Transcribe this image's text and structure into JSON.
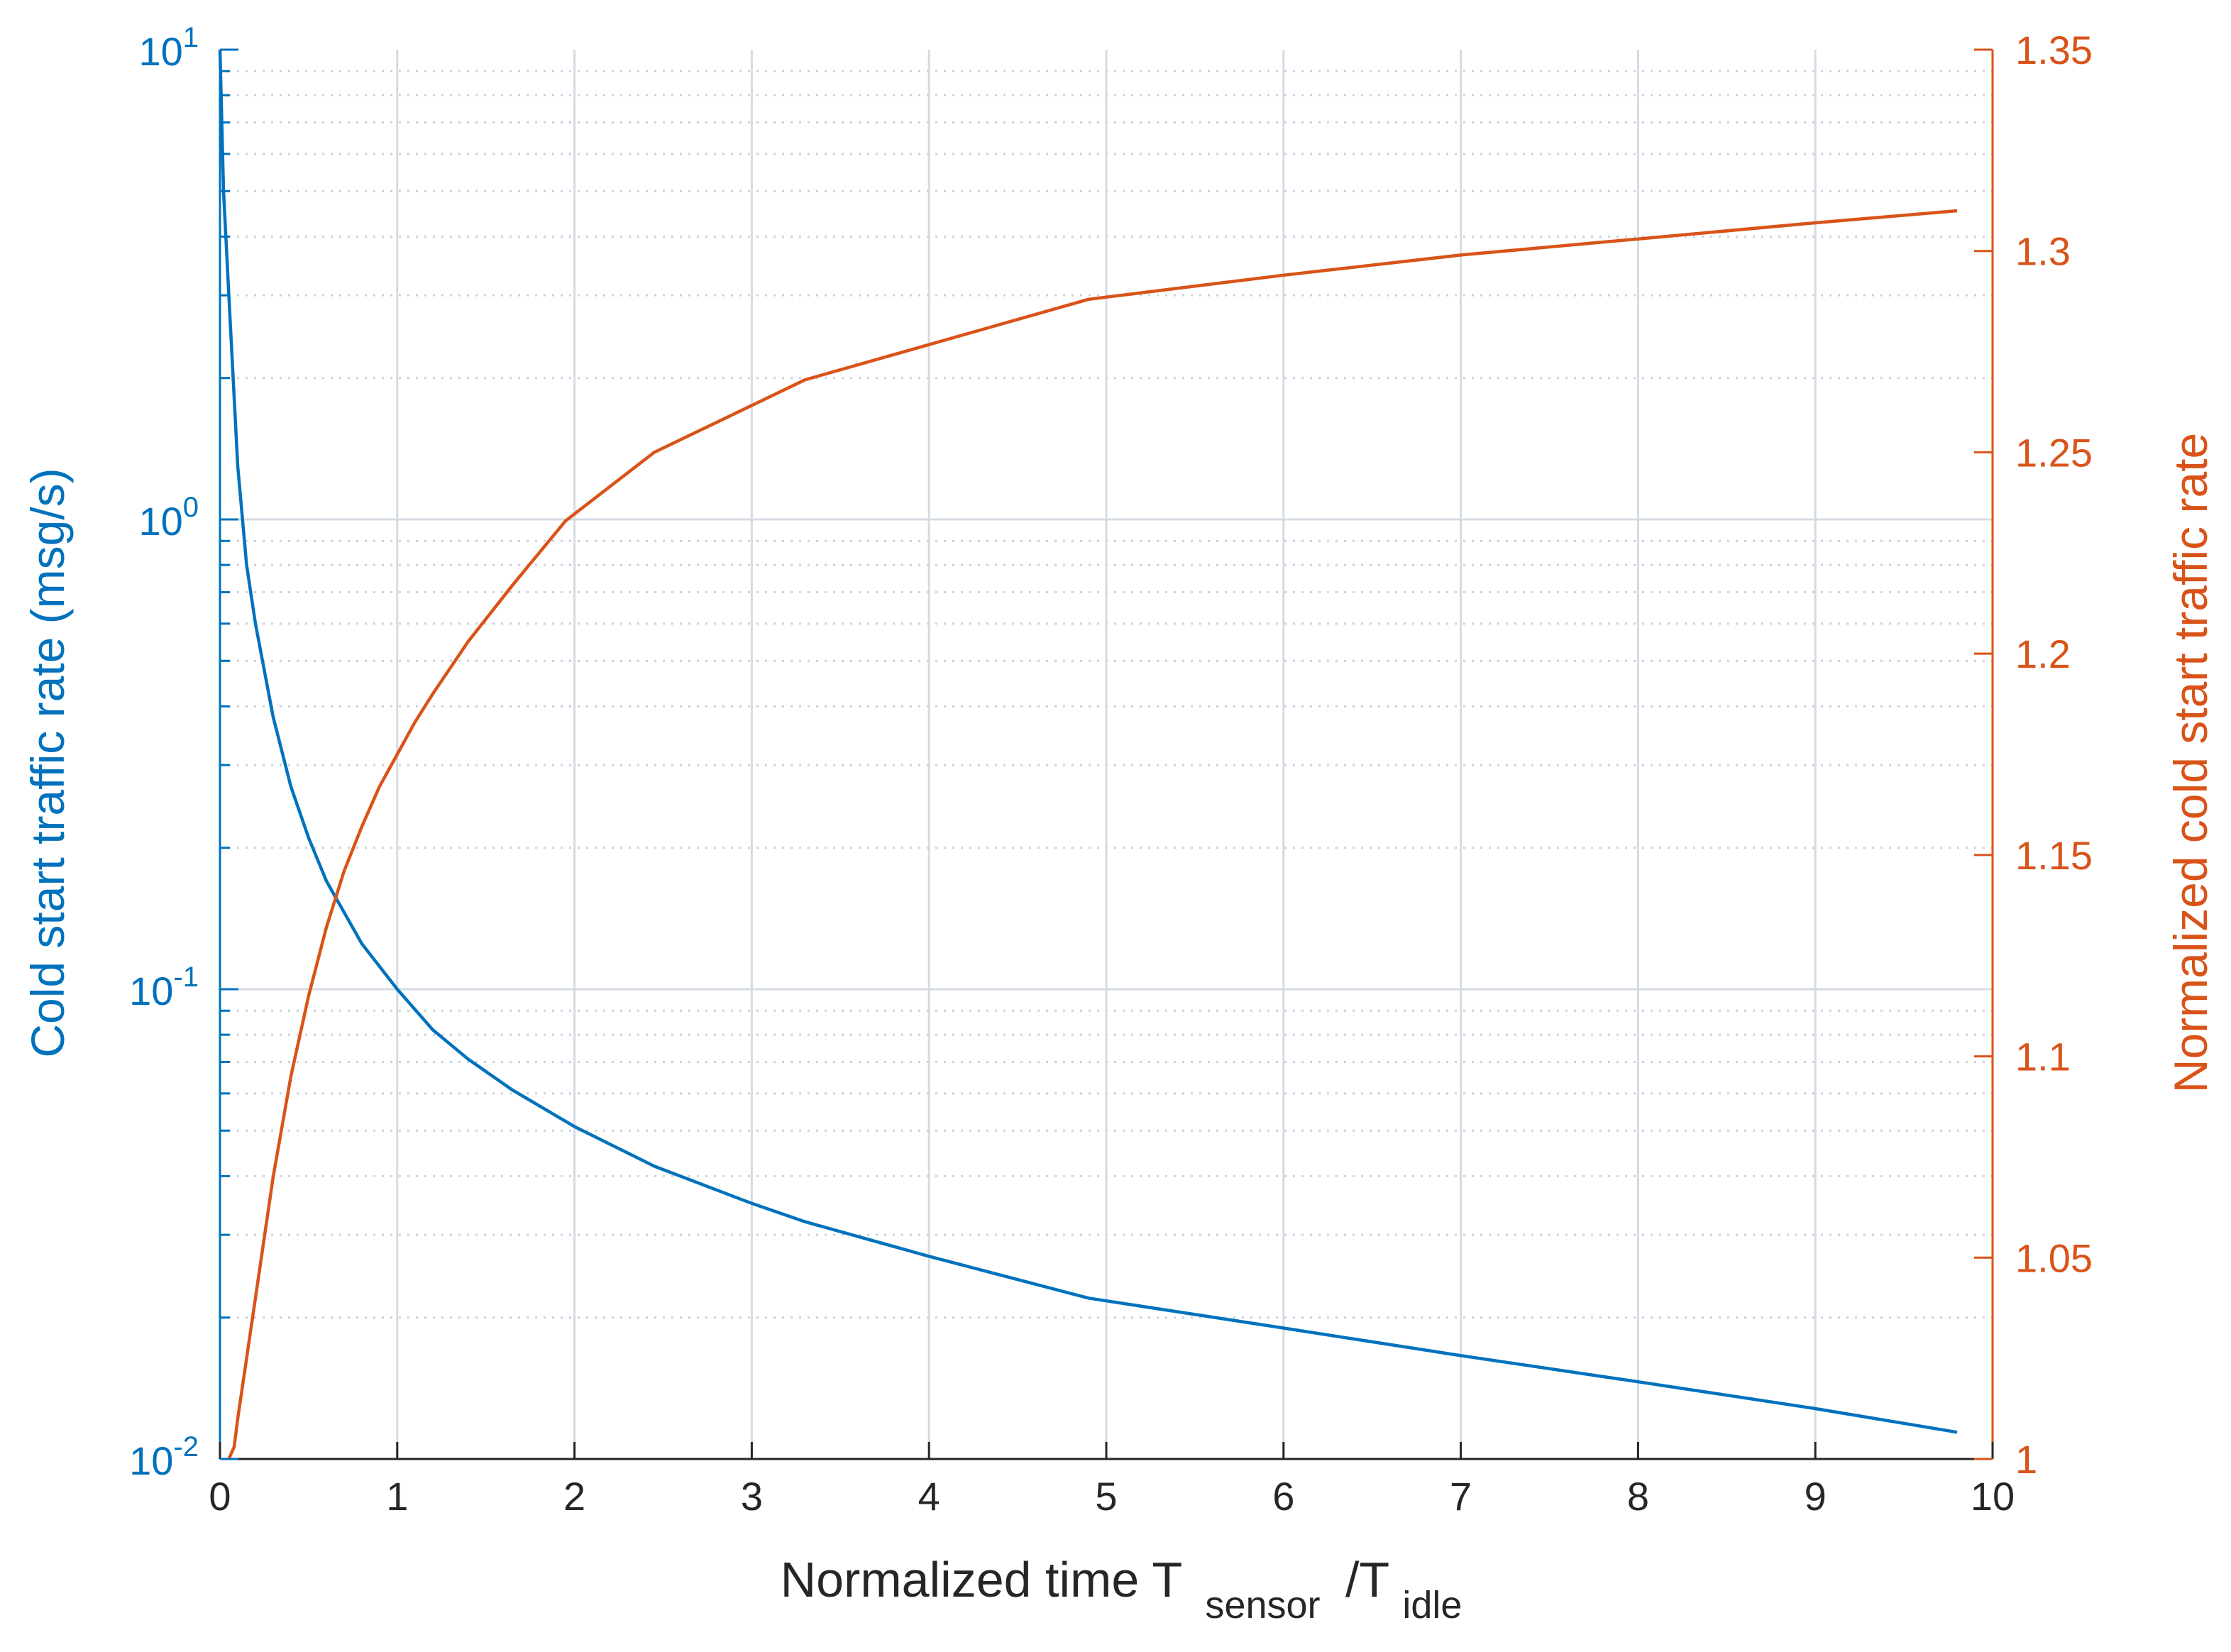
{
  "chart_data": {
    "type": "line",
    "x_axis": {
      "label_main": "Normalized time T",
      "label_sub1": "sensor",
      "label_mid": "/T",
      "label_sub2": "idle",
      "range": [
        0,
        10
      ],
      "ticks": [
        "0",
        "1",
        "2",
        "3",
        "4",
        "5",
        "6",
        "7",
        "8",
        "9",
        "10"
      ]
    },
    "left_axis": {
      "label": "Cold start traffic rate (msg/s)",
      "scale": "log",
      "range": [
        0.01,
        10
      ],
      "ticks": [
        {
          "base": "10",
          "exp": "-2"
        },
        {
          "base": "10",
          "exp": "-1"
        },
        {
          "base": "10",
          "exp": "0"
        },
        {
          "base": "10",
          "exp": "1"
        }
      ],
      "color": "#0072BD"
    },
    "right_axis": {
      "label": "Normalized cold start traffic rate",
      "scale": "linear",
      "range": [
        1,
        1.35
      ],
      "ticks": [
        "1",
        "1.05",
        "1.1",
        "1.15",
        "1.2",
        "1.25",
        "1.3",
        "1.35"
      ],
      "color": "#D95319"
    },
    "grid": true,
    "series": [
      {
        "axis": "left",
        "color": "#0072BD",
        "x": [
          0.0,
          0.02,
          0.05,
          0.1,
          0.15,
          0.2,
          0.3,
          0.4,
          0.5,
          0.6,
          0.8,
          1.0,
          1.2,
          1.4,
          1.65,
          2.0,
          2.45,
          3.0,
          3.3,
          4.0,
          4.9,
          6.0,
          7.0,
          8.0,
          9.0,
          9.8
        ],
        "y": [
          10,
          5.0,
          3.0,
          1.3,
          0.8,
          0.6,
          0.38,
          0.27,
          0.21,
          0.17,
          0.125,
          0.1,
          0.082,
          0.071,
          0.061,
          0.051,
          0.042,
          0.035,
          0.032,
          0.027,
          0.022,
          0.019,
          0.0166,
          0.0146,
          0.0128,
          0.0114
        ]
      },
      {
        "axis": "right",
        "color": "#D95319",
        "x": [
          0.05,
          0.08,
          0.1,
          0.15,
          0.2,
          0.3,
          0.4,
          0.5,
          0.6,
          0.7,
          0.8,
          0.9,
          1.0,
          1.1,
          1.2,
          1.4,
          1.65,
          1.95,
          2.45,
          3.3,
          4.9,
          6.0,
          7.0,
          8.0,
          9.0,
          9.8
        ],
        "y": [
          1.0,
          1.003,
          1.01,
          1.025,
          1.04,
          1.07,
          1.095,
          1.115,
          1.132,
          1.146,
          1.157,
          1.167,
          1.175,
          1.183,
          1.19,
          1.203,
          1.217,
          1.233,
          1.25,
          1.268,
          1.288,
          1.294,
          1.299,
          1.303,
          1.307,
          1.31
        ]
      }
    ]
  }
}
